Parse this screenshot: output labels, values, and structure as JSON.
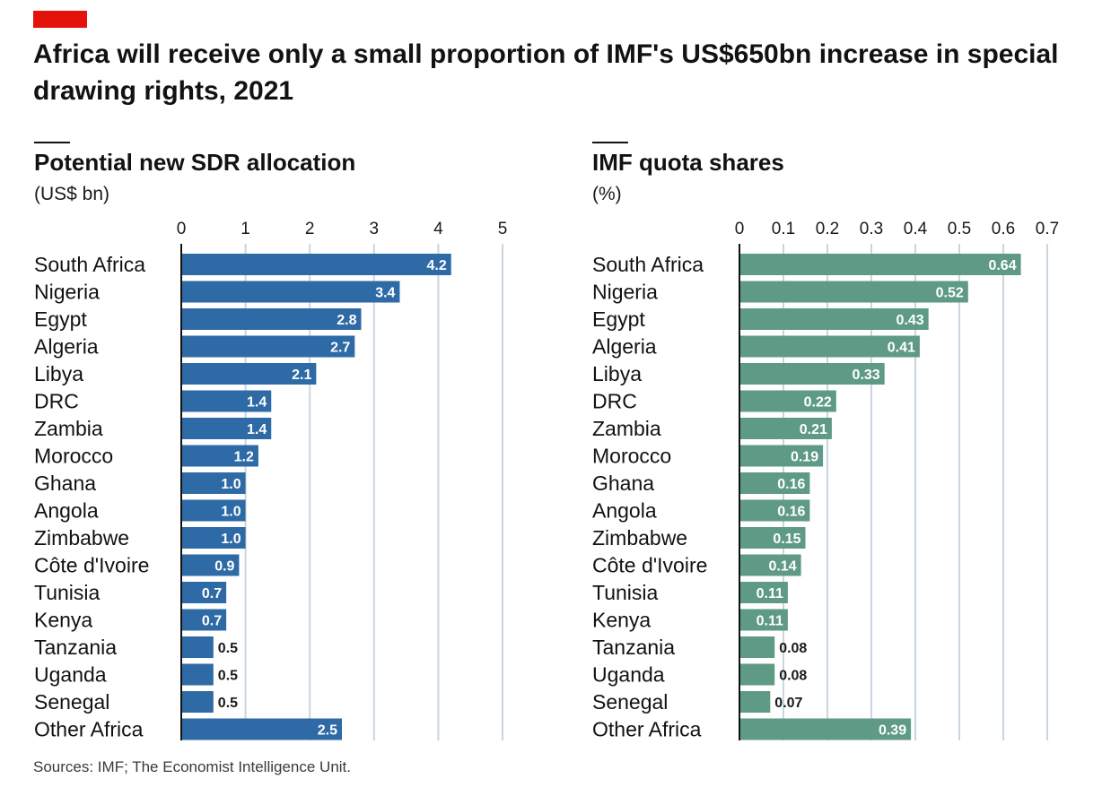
{
  "header": {
    "title": "Africa will receive only a small proportion of IMF's US$650bn increase in special drawing rights, 2021"
  },
  "colors": {
    "accent_tag": "#e3120b",
    "left_bars": "#2e6aa5",
    "right_bars": "#5e9a86"
  },
  "panels": [
    {
      "title": "Potential new SDR allocation",
      "unit": "(US$ bn)"
    },
    {
      "title": "IMF quota shares",
      "unit": "(%)"
    }
  ],
  "footer": {
    "source": "Sources: IMF; The Economist Intelligence Unit."
  },
  "chart_data": [
    {
      "type": "bar",
      "orientation": "horizontal",
      "title": "Potential new SDR allocation",
      "subtitle": "(US$ bn)",
      "categories": [
        "South Africa",
        "Nigeria",
        "Egypt",
        "Algeria",
        "Libya",
        "DRC",
        "Zambia",
        "Morocco",
        "Ghana",
        "Angola",
        "Zimbabwe",
        "Côte d'Ivoire",
        "Tunisia",
        "Kenya",
        "Tanzania",
        "Uganda",
        "Senegal",
        "Other Africa"
      ],
      "values": [
        4.2,
        3.4,
        2.8,
        2.7,
        2.1,
        1.4,
        1.4,
        1.2,
        1.0,
        1.0,
        1.0,
        0.9,
        0.7,
        0.7,
        0.5,
        0.5,
        0.5,
        2.5
      ],
      "value_labels": [
        "4.2",
        "3.4",
        "2.8",
        "2.7",
        "2.1",
        "1.4",
        "1.4",
        "1.2",
        "1.0",
        "1.0",
        "1.0",
        "0.9",
        "0.7",
        "0.7",
        "0.5",
        "0.5",
        "0.5",
        "2.5"
      ],
      "ticks": [
        "0",
        "1",
        "2",
        "3",
        "4",
        "5"
      ],
      "xlim": [
        0,
        5
      ],
      "grid": true,
      "color": "#2e6aa5"
    },
    {
      "type": "bar",
      "orientation": "horizontal",
      "title": "IMF quota shares",
      "subtitle": "(%)",
      "categories": [
        "South Africa",
        "Nigeria",
        "Egypt",
        "Algeria",
        "Libya",
        "DRC",
        "Zambia",
        "Morocco",
        "Ghana",
        "Angola",
        "Zimbabwe",
        "Côte d'Ivoire",
        "Tunisia",
        "Kenya",
        "Tanzania",
        "Uganda",
        "Senegal",
        "Other Africa"
      ],
      "values": [
        0.64,
        0.52,
        0.43,
        0.41,
        0.33,
        0.22,
        0.21,
        0.19,
        0.16,
        0.16,
        0.15,
        0.14,
        0.11,
        0.11,
        0.08,
        0.08,
        0.07,
        0.39
      ],
      "value_labels": [
        "0.64",
        "0.52",
        "0.43",
        "0.41",
        "0.33",
        "0.22",
        "0.21",
        "0.19",
        "0.16",
        "0.16",
        "0.15",
        "0.14",
        "0.11",
        "0.11",
        "0.08",
        "0.08",
        "0.07",
        "0.39"
      ],
      "ticks": [
        "0",
        "0.1",
        "0.2",
        "0.3",
        "0.4",
        "0.5",
        "0.6",
        "0.7"
      ],
      "xlim": [
        0,
        0.7
      ],
      "grid": true,
      "color": "#5e9a86"
    }
  ]
}
